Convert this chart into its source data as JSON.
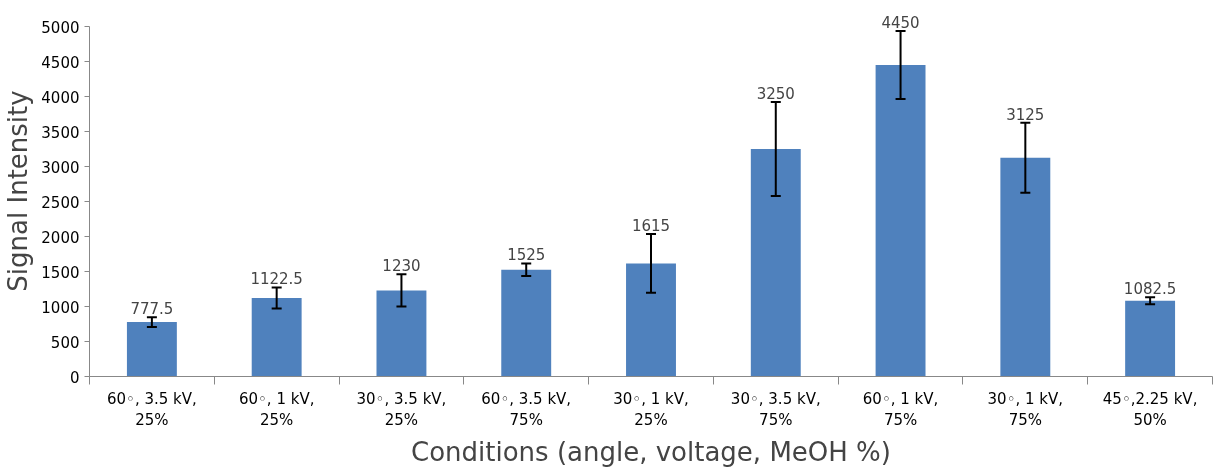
{
  "chart_data": {
    "type": "bar",
    "xlabel": "Conditions (angle, voltage, MeOH %)",
    "ylabel": "Signal Intensity",
    "categories": [
      "60◦, 3.5 kV,\n25%",
      "60◦, 1 kV,\n25%",
      "30◦, 3.5 kV,\n25%",
      "60◦, 3.5 kV,\n75%",
      "30◦, 1 kV,\n25%",
      "30◦, 3.5 kV,\n75%",
      "60◦, 1 kV,\n75%",
      "30◦, 1 kV,\n75%",
      "45◦,2.25 kV,\n50%"
    ],
    "values": [
      777.5,
      1122.5,
      1230,
      1525,
      1615,
      3250,
      4450,
      3125,
      1082.5
    ],
    "errors": [
      70,
      150,
      230,
      90,
      420,
      670,
      485,
      500,
      50
    ],
    "color": "#4f81bd",
    "data_labels": true,
    "ylim": [
      0,
      5000
    ],
    "yticks": [
      0,
      500,
      1000,
      1500,
      2000,
      2500,
      3000,
      3500,
      4000,
      4500,
      5000
    ],
    "grid": false
  }
}
